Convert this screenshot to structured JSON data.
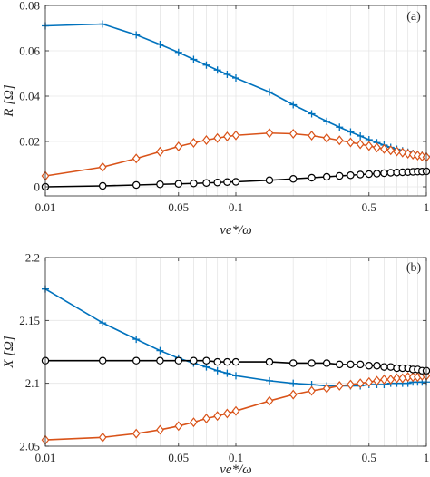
{
  "chart_data": [
    {
      "type": "line",
      "panel_label": "(a)",
      "xlabel": "νe*/ω",
      "ylabel": "R [Ω]",
      "xscale": "log",
      "xlim": [
        0.01,
        1
      ],
      "ylim": [
        -0.004,
        0.08
      ],
      "x_ticks": [
        0.01,
        0.05,
        0.1,
        0.5,
        1
      ],
      "x_tick_labels": [
        "0.01",
        "0.05",
        "0.1",
        "0.5",
        "1"
      ],
      "y_ticks": [
        0,
        0.02,
        0.04,
        0.06,
        0.08
      ],
      "y_tick_labels": [
        "0",
        "0.02",
        "0.04",
        "0.06",
        "0.08"
      ],
      "grid": true,
      "series": [
        {
          "color": "#0072BD",
          "marker": "plus",
          "points": [
            [
              0.01,
              0.071
            ],
            [
              0.02,
              0.0718
            ],
            [
              0.03,
              0.067
            ],
            [
              0.04,
              0.0628
            ],
            [
              0.05,
              0.0593
            ],
            [
              0.06,
              0.0562
            ],
            [
              0.07,
              0.0537
            ],
            [
              0.08,
              0.0515
            ],
            [
              0.09,
              0.0496
            ],
            [
              0.1,
              0.048
            ],
            [
              0.15,
              0.0418
            ],
            [
              0.2,
              0.0362
            ],
            [
              0.25,
              0.0322
            ],
            [
              0.3,
              0.0289
            ],
            [
              0.35,
              0.0263
            ],
            [
              0.4,
              0.0242
            ],
            [
              0.45,
              0.0224
            ],
            [
              0.5,
              0.0208
            ],
            [
              0.55,
              0.0195
            ],
            [
              0.6,
              0.0184
            ],
            [
              0.65,
              0.0174
            ],
            [
              0.7,
              0.0166
            ],
            [
              0.75,
              0.0159
            ],
            [
              0.8,
              0.0153
            ],
            [
              0.85,
              0.0148
            ],
            [
              0.9,
              0.0143
            ],
            [
              0.95,
              0.0139
            ],
            [
              1.0,
              0.0135
            ]
          ]
        },
        {
          "color": "#D95319",
          "marker": "diamond",
          "points": [
            [
              0.01,
              0.0048
            ],
            [
              0.02,
              0.0087
            ],
            [
              0.03,
              0.0125
            ],
            [
              0.04,
              0.0155
            ],
            [
              0.05,
              0.0178
            ],
            [
              0.06,
              0.0194
            ],
            [
              0.07,
              0.0206
            ],
            [
              0.08,
              0.0215
            ],
            [
              0.09,
              0.0222
            ],
            [
              0.1,
              0.0227
            ],
            [
              0.15,
              0.0237
            ],
            [
              0.2,
              0.0234
            ],
            [
              0.25,
              0.0226
            ],
            [
              0.3,
              0.0215
            ],
            [
              0.35,
              0.0205
            ],
            [
              0.4,
              0.0196
            ],
            [
              0.45,
              0.0188
            ],
            [
              0.5,
              0.018
            ],
            [
              0.55,
              0.0173
            ],
            [
              0.6,
              0.0167
            ],
            [
              0.65,
              0.0161
            ],
            [
              0.7,
              0.0156
            ],
            [
              0.75,
              0.0151
            ],
            [
              0.8,
              0.0146
            ],
            [
              0.85,
              0.0142
            ],
            [
              0.9,
              0.0138
            ],
            [
              0.95,
              0.0134
            ],
            [
              1.0,
              0.0131
            ]
          ]
        },
        {
          "color": "#000000",
          "marker": "circle",
          "points": [
            [
              0.01,
              0.0
            ],
            [
              0.02,
              0.0004
            ],
            [
              0.03,
              0.0008
            ],
            [
              0.04,
              0.0011
            ],
            [
              0.05,
              0.0013
            ],
            [
              0.06,
              0.0015
            ],
            [
              0.07,
              0.0017
            ],
            [
              0.08,
              0.0019
            ],
            [
              0.09,
              0.0021
            ],
            [
              0.1,
              0.0022
            ],
            [
              0.15,
              0.0029
            ],
            [
              0.2,
              0.0035
            ],
            [
              0.25,
              0.004
            ],
            [
              0.3,
              0.0044
            ],
            [
              0.35,
              0.0048
            ],
            [
              0.4,
              0.0051
            ],
            [
              0.45,
              0.0054
            ],
            [
              0.5,
              0.0056
            ],
            [
              0.55,
              0.0058
            ],
            [
              0.6,
              0.006
            ],
            [
              0.65,
              0.0062
            ],
            [
              0.7,
              0.0063
            ],
            [
              0.75,
              0.0064
            ],
            [
              0.8,
              0.0065
            ],
            [
              0.85,
              0.0066
            ],
            [
              0.9,
              0.0067
            ],
            [
              0.95,
              0.0067
            ],
            [
              1.0,
              0.0068
            ]
          ]
        }
      ]
    },
    {
      "type": "line",
      "panel_label": "(b)",
      "xlabel": "νe*/ω",
      "ylabel": "X [Ω]",
      "xscale": "log",
      "xlim": [
        0.01,
        1
      ],
      "ylim": [
        2.05,
        2.2
      ],
      "x_ticks": [
        0.01,
        0.05,
        0.1,
        0.5,
        1
      ],
      "x_tick_labels": [
        "0.01",
        "0.05",
        "0.1",
        "0.5",
        "1"
      ],
      "y_ticks": [
        2.05,
        2.1,
        2.15,
        2.2
      ],
      "y_tick_labels": [
        "2.05",
        "2.1",
        "2.15",
        "2.2"
      ],
      "grid": true,
      "series": [
        {
          "color": "#0072BD",
          "marker": "plus",
          "points": [
            [
              0.01,
              2.175
            ],
            [
              0.02,
              2.148
            ],
            [
              0.03,
              2.135
            ],
            [
              0.04,
              2.126
            ],
            [
              0.05,
              2.12
            ],
            [
              0.06,
              2.116
            ],
            [
              0.07,
              2.113
            ],
            [
              0.08,
              2.11
            ],
            [
              0.09,
              2.108
            ],
            [
              0.1,
              2.106
            ],
            [
              0.15,
              2.102
            ],
            [
              0.2,
              2.1
            ],
            [
              0.25,
              2.099
            ],
            [
              0.3,
              2.098
            ],
            [
              0.35,
              2.098
            ],
            [
              0.4,
              2.098
            ],
            [
              0.45,
              2.098
            ],
            [
              0.5,
              2.099
            ],
            [
              0.55,
              2.099
            ],
            [
              0.6,
              2.099
            ],
            [
              0.65,
              2.1
            ],
            [
              0.7,
              2.1
            ],
            [
              0.75,
              2.1
            ],
            [
              0.8,
              2.1
            ],
            [
              0.85,
              2.101
            ],
            [
              0.9,
              2.101
            ],
            [
              0.95,
              2.101
            ],
            [
              1.0,
              2.101
            ]
          ]
        },
        {
          "color": "#D95319",
          "marker": "diamond",
          "points": [
            [
              0.01,
              2.055
            ],
            [
              0.02,
              2.057
            ],
            [
              0.03,
              2.06
            ],
            [
              0.04,
              2.063
            ],
            [
              0.05,
              2.066
            ],
            [
              0.06,
              2.069
            ],
            [
              0.07,
              2.072
            ],
            [
              0.08,
              2.074
            ],
            [
              0.09,
              2.076
            ],
            [
              0.1,
              2.078
            ],
            [
              0.15,
              2.086
            ],
            [
              0.2,
              2.091
            ],
            [
              0.25,
              2.094
            ],
            [
              0.3,
              2.096
            ],
            [
              0.35,
              2.098
            ],
            [
              0.4,
              2.099
            ],
            [
              0.45,
              2.1
            ],
            [
              0.5,
              2.101
            ],
            [
              0.55,
              2.102
            ],
            [
              0.6,
              2.103
            ],
            [
              0.65,
              2.103
            ],
            [
              0.7,
              2.104
            ],
            [
              0.75,
              2.104
            ],
            [
              0.8,
              2.105
            ],
            [
              0.85,
              2.105
            ],
            [
              0.9,
              2.105
            ],
            [
              0.95,
              2.106
            ],
            [
              1.0,
              2.106
            ]
          ]
        },
        {
          "color": "#000000",
          "marker": "circle",
          "points": [
            [
              0.01,
              2.118
            ],
            [
              0.02,
              2.118
            ],
            [
              0.03,
              2.118
            ],
            [
              0.04,
              2.118
            ],
            [
              0.05,
              2.118
            ],
            [
              0.06,
              2.118
            ],
            [
              0.07,
              2.118
            ],
            [
              0.08,
              2.117
            ],
            [
              0.09,
              2.117
            ],
            [
              0.1,
              2.117
            ],
            [
              0.15,
              2.117
            ],
            [
              0.2,
              2.116
            ],
            [
              0.25,
              2.116
            ],
            [
              0.3,
              2.116
            ],
            [
              0.35,
              2.115
            ],
            [
              0.4,
              2.115
            ],
            [
              0.45,
              2.115
            ],
            [
              0.5,
              2.114
            ],
            [
              0.55,
              2.114
            ],
            [
              0.6,
              2.113
            ],
            [
              0.65,
              2.113
            ],
            [
              0.7,
              2.112
            ],
            [
              0.75,
              2.112
            ],
            [
              0.8,
              2.112
            ],
            [
              0.85,
              2.111
            ],
            [
              0.9,
              2.111
            ],
            [
              0.95,
              2.11
            ],
            [
              1.0,
              2.11
            ]
          ]
        }
      ]
    }
  ]
}
